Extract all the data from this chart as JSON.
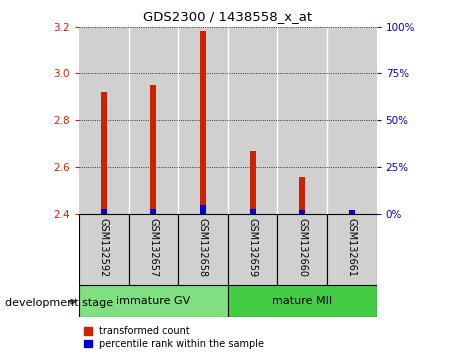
{
  "title": "GDS2300 / 1438558_x_at",
  "samples": [
    "GSM132592",
    "GSM132657",
    "GSM132658",
    "GSM132659",
    "GSM132660",
    "GSM132661"
  ],
  "transformed_counts": [
    2.92,
    2.95,
    3.18,
    2.67,
    2.56,
    2.4
  ],
  "percentile_ranks": [
    3,
    3,
    5,
    3,
    2,
    2
  ],
  "ymin": 2.4,
  "ymax": 3.2,
  "yticks": [
    2.4,
    2.6,
    2.8,
    3.0,
    3.2
  ],
  "right_yticks": [
    0,
    25,
    50,
    75,
    100
  ],
  "groups": [
    {
      "label": "immature GV",
      "indices": [
        0,
        1,
        2
      ],
      "color": "#80E080"
    },
    {
      "label": "mature MII",
      "indices": [
        3,
        4,
        5
      ],
      "color": "#44CC44"
    }
  ],
  "bar_color_red": "#CC2200",
  "bar_color_blue": "#0000CC",
  "bg_color_sample": "#D0D0D0",
  "bar_width": 0.12,
  "legend_label_red": "transformed count",
  "legend_label_blue": "percentile rank within the sample",
  "xlabel_left": "development stage",
  "left_axis_color": "#CC2200",
  "right_axis_color": "#0000CC"
}
